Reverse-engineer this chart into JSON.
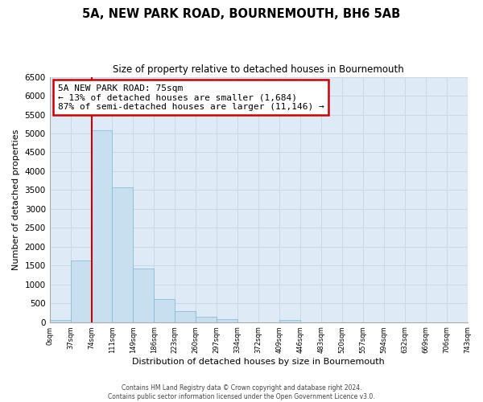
{
  "title": "5A, NEW PARK ROAD, BOURNEMOUTH, BH6 5AB",
  "subtitle": "Size of property relative to detached houses in Bournemouth",
  "xlabel": "Distribution of detached houses by size in Bournemouth",
  "ylabel": "Number of detached properties",
  "bin_labels": [
    "0sqm",
    "37sqm",
    "74sqm",
    "111sqm",
    "149sqm",
    "186sqm",
    "223sqm",
    "260sqm",
    "297sqm",
    "334sqm",
    "372sqm",
    "409sqm",
    "446sqm",
    "483sqm",
    "520sqm",
    "557sqm",
    "594sqm",
    "632sqm",
    "669sqm",
    "706sqm",
    "743sqm"
  ],
  "bar_values": [
    60,
    1640,
    5080,
    3580,
    1420,
    620,
    300,
    150,
    70,
    0,
    0,
    50,
    0,
    0,
    0,
    0,
    0,
    0,
    0,
    0
  ],
  "bar_color": "#c8dff0",
  "bar_edge_color": "#7ab8d4",
  "grid_color": "#c8d8e8",
  "property_line_x": 2,
  "annotation_title": "5A NEW PARK ROAD: 75sqm",
  "annotation_line1": "← 13% of detached houses are smaller (1,684)",
  "annotation_line2": "87% of semi-detached houses are larger (11,146) →",
  "annotation_box_color": "#ffffff",
  "annotation_box_edge": "#cc0000",
  "property_line_color": "#cc0000",
  "ylim": [
    0,
    6500
  ],
  "yticks": [
    0,
    500,
    1000,
    1500,
    2000,
    2500,
    3000,
    3500,
    4000,
    4500,
    5000,
    5500,
    6000,
    6500
  ],
  "footer_line1": "Contains HM Land Registry data © Crown copyright and database right 2024.",
  "footer_line2": "Contains public sector information licensed under the Open Government Licence v3.0."
}
